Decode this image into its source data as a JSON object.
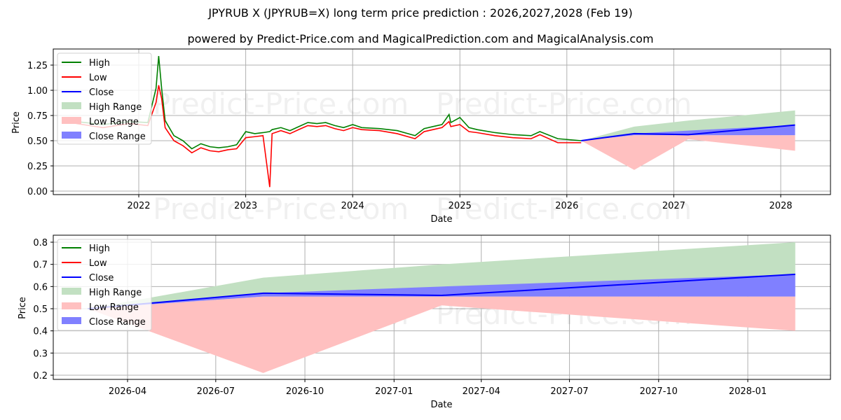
{
  "header": {
    "title": "JPYRUB X (JPYRUB=X) long term price prediction : 2026,2027,2028 (Feb 19)",
    "subtitle": "powered by Predict-Price.com and MagicalPrediction.com and MagicalAnalysis.com"
  },
  "watermark": "Predict-Price.com",
  "legend": {
    "high": "High",
    "low": "Low",
    "close": "Close",
    "high_range": "High Range",
    "low_range": "Low Range",
    "close_range": "Close Range"
  },
  "colors": {
    "high": "#008000",
    "low": "#ff0000",
    "close": "#0000ff",
    "high_range": "#c2e0c2",
    "low_range": "#ffc0c0",
    "close_range": "#8080ff"
  },
  "chart_data": [
    {
      "type": "line",
      "title": "JPYRUB X (JPYRUB=X) long term price prediction : 2026,2027,2028 (Feb 19)",
      "xlabel": "Date",
      "ylabel": "Price",
      "ylim": [
        -0.02,
        1.4
      ],
      "yticks": [
        "0.00",
        "0.25",
        "0.50",
        "0.75",
        "1.00",
        "1.25"
      ],
      "xticks": [
        "2022",
        "2023",
        "2024",
        "2025",
        "2026",
        "2027",
        "2028"
      ],
      "grid": true,
      "legend_position": "upper left",
      "history": {
        "x": [
          "2021-06",
          "2021-09",
          "2021-12",
          "2022-02",
          "2022-03-01",
          "2022-03-10",
          "2022-03-20",
          "2022-04",
          "2022-05",
          "2022-06",
          "2022-07",
          "2022-08",
          "2022-09",
          "2022-10",
          "2022-11",
          "2022-12",
          "2023-01",
          "2023-02",
          "2023-03",
          "2023-03-24",
          "2023-04",
          "2023-05",
          "2023-06",
          "2023-07",
          "2023-08",
          "2023-09",
          "2023-10",
          "2023-11",
          "2023-12",
          "2024-01",
          "2024-02",
          "2024-04",
          "2024-06",
          "2024-08",
          "2024-09",
          "2024-10",
          "2024-11",
          "2024-11-25",
          "2024-12",
          "2025-01",
          "2025-02",
          "2025-03",
          "2025-05",
          "2025-07",
          "2025-09",
          "2025-10",
          "2025-12",
          "2026-02-19"
        ],
        "high": [
          0.69,
          0.66,
          0.69,
          0.68,
          1.02,
          1.34,
          1.02,
          0.7,
          0.55,
          0.5,
          0.42,
          0.47,
          0.44,
          0.43,
          0.44,
          0.46,
          0.59,
          0.57,
          0.58,
          0.59,
          0.61,
          0.63,
          0.6,
          0.64,
          0.68,
          0.67,
          0.68,
          0.65,
          0.63,
          0.66,
          0.63,
          0.62,
          0.6,
          0.55,
          0.62,
          0.64,
          0.66,
          0.76,
          0.68,
          0.73,
          0.63,
          0.61,
          0.58,
          0.56,
          0.55,
          0.59,
          0.52,
          0.5
        ],
        "low": [
          0.67,
          0.63,
          0.67,
          0.65,
          0.88,
          1.05,
          0.92,
          0.63,
          0.5,
          0.45,
          0.38,
          0.43,
          0.4,
          0.39,
          0.41,
          0.42,
          0.53,
          0.54,
          0.55,
          0.04,
          0.57,
          0.6,
          0.57,
          0.61,
          0.65,
          0.64,
          0.65,
          0.62,
          0.6,
          0.63,
          0.61,
          0.6,
          0.57,
          0.52,
          0.59,
          0.61,
          0.63,
          0.69,
          0.64,
          0.66,
          0.59,
          0.58,
          0.55,
          0.53,
          0.52,
          0.56,
          0.48,
          0.48
        ]
      },
      "forecast": {
        "x": [
          "2026-02-19",
          "2026-08-19",
          "2027-02-19",
          "2028-02-19"
        ],
        "close": [
          0.5,
          0.57,
          0.56,
          0.655
        ],
        "high_range_upper": [
          0.5,
          0.64,
          0.7,
          0.8
        ],
        "close_range_upper": [
          0.5,
          0.57,
          0.6,
          0.655
        ],
        "close_range_lower": [
          0.5,
          0.555,
          0.555,
          0.555
        ],
        "low_range_upper": [
          0.5,
          0.555,
          0.555,
          0.555
        ],
        "low_range_lower": [
          0.5,
          0.21,
          0.515,
          0.4
        ]
      }
    },
    {
      "type": "line",
      "title": "",
      "xlabel": "Date",
      "ylabel": "Price",
      "ylim": [
        0.18,
        0.83
      ],
      "yticks": [
        "0.2",
        "0.3",
        "0.4",
        "0.5",
        "0.6",
        "0.7",
        "0.8"
      ],
      "xticks": [
        "2026-04",
        "2026-07",
        "2026-10",
        "2027-01",
        "2027-04",
        "2027-07",
        "2027-10",
        "2028-01"
      ],
      "grid": true,
      "legend_position": "upper left",
      "forecast": {
        "x": [
          "2026-02-19",
          "2026-08-19",
          "2027-02-19",
          "2028-02-19"
        ],
        "close": [
          0.5,
          0.57,
          0.56,
          0.655
        ],
        "high_range_upper": [
          0.5,
          0.64,
          0.7,
          0.8
        ],
        "close_range_upper": [
          0.5,
          0.57,
          0.6,
          0.655
        ],
        "close_range_lower": [
          0.5,
          0.555,
          0.555,
          0.555
        ],
        "low_range_upper": [
          0.5,
          0.555,
          0.555,
          0.555
        ],
        "low_range_lower": [
          0.5,
          0.21,
          0.515,
          0.4
        ]
      }
    }
  ]
}
